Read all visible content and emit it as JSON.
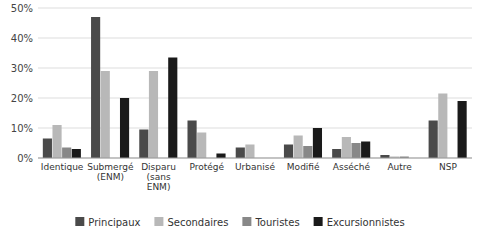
{
  "chart_data": {
    "type": "bar",
    "categories": [
      "Identique",
      "Submergé\n(ENM)",
      "Disparu\n(sans\nENM)",
      "Protégé",
      "Urbanisé",
      "Modifié",
      "Asséché",
      "Autre",
      "NSP"
    ],
    "series": [
      {
        "name": "Principaux",
        "color": "#4a4a4a",
        "values": [
          6.5,
          47,
          9.5,
          12.5,
          3.5,
          4.5,
          3.0,
          1.0,
          12.5
        ]
      },
      {
        "name": "Secondaires",
        "color": "#b8b8b8",
        "values": [
          11,
          29,
          29,
          8.5,
          4.5,
          7.5,
          7.0,
          0.5,
          21.5
        ]
      },
      {
        "name": "Touristes",
        "color": "#888888",
        "values": [
          3.5,
          0,
          0,
          0,
          0,
          4,
          5,
          0.5,
          0
        ]
      },
      {
        "name": "Excursionnistes",
        "color": "#1a1a1a",
        "values": [
          3,
          20,
          33.5,
          1.5,
          0,
          10,
          5.5,
          0,
          19
        ]
      }
    ],
    "ylim": [
      0,
      50
    ],
    "yticks": [
      {
        "value": 0,
        "label": "0%"
      },
      {
        "value": 10,
        "label": "10%"
      },
      {
        "value": 20,
        "label": "20%"
      },
      {
        "value": 30,
        "label": "30%"
      },
      {
        "value": 40,
        "label": "40%"
      },
      {
        "value": 50,
        "label": "50%"
      }
    ],
    "grid": true,
    "legend": "bottom"
  }
}
